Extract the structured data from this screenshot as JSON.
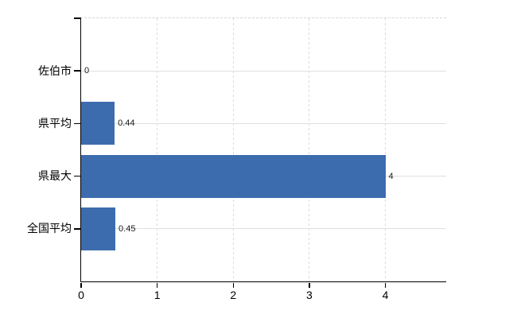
{
  "chart_data": {
    "type": "bar",
    "orientation": "horizontal",
    "title": "",
    "categories": [
      "佐伯市",
      "県平均",
      "県最大",
      "全国平均"
    ],
    "values": [
      0,
      0.44,
      4,
      0.45
    ],
    "value_labels": [
      "0",
      "0.44",
      "4",
      "0.45"
    ],
    "xticks": [
      "0",
      "1",
      "2",
      "3",
      "4"
    ],
    "xtick_values": [
      0,
      1,
      2,
      3,
      4
    ],
    "xlim": [
      0,
      4.8
    ],
    "grid": true,
    "legend": false,
    "bar_color": "#3c6cae",
    "axis_color": "#000000",
    "vgrid_color": "#d8dcd8",
    "hgrid_color": "#dde2dd",
    "label_color": "#000000",
    "value_label_color": "#1a1a1a",
    "background": "#ffffff"
  }
}
